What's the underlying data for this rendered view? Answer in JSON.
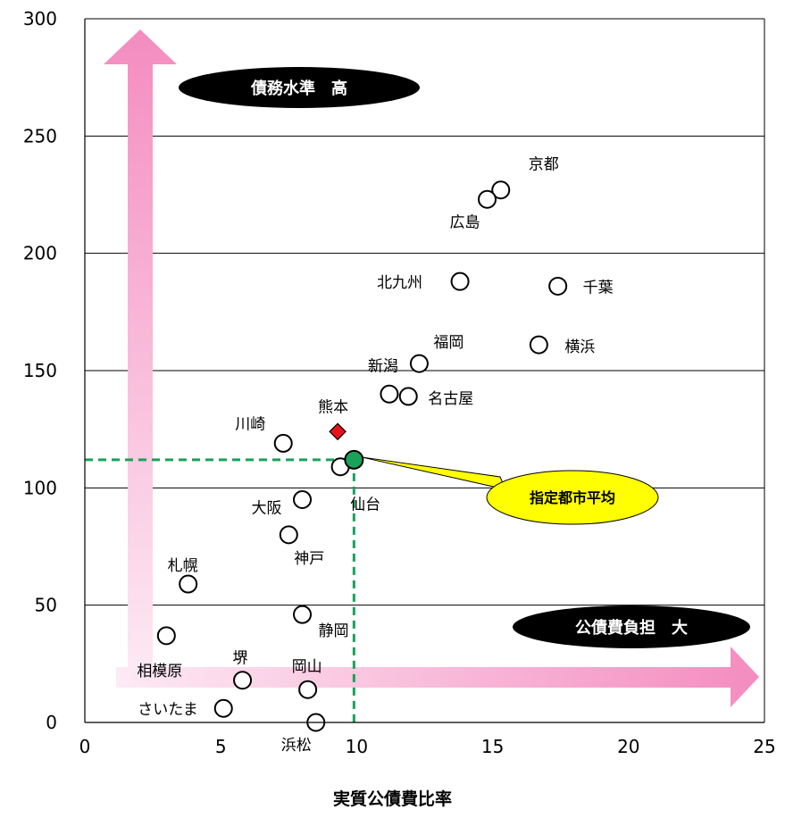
{
  "chart_data": {
    "type": "scatter",
    "xlabel": "実質公債費比率",
    "ylabel": "",
    "xlim": [
      0,
      25
    ],
    "ylim": [
      0,
      300
    ],
    "xticks": [
      "0",
      "5",
      "10",
      "15",
      "20",
      "25"
    ],
    "yticks": [
      "0",
      "50",
      "100",
      "150",
      "200",
      "250",
      "300"
    ],
    "grid": "horizontal",
    "points": [
      {
        "label": "京都",
        "x": 15.3,
        "y": 227
      },
      {
        "label": "広島",
        "x": 14.8,
        "y": 223
      },
      {
        "label": "北九州",
        "x": 13.8,
        "y": 188
      },
      {
        "label": "千葉",
        "x": 17.4,
        "y": 186
      },
      {
        "label": "横浜",
        "x": 16.7,
        "y": 161
      },
      {
        "label": "福岡",
        "x": 12.3,
        "y": 153
      },
      {
        "label": "新潟",
        "x": 11.2,
        "y": 140
      },
      {
        "label": "名古屋",
        "x": 11.9,
        "y": 139
      },
      {
        "label": "川崎",
        "x": 7.3,
        "y": 119
      },
      {
        "label": "仙台",
        "x": 9.4,
        "y": 109
      },
      {
        "label": "大阪",
        "x": 8.0,
        "y": 95
      },
      {
        "label": "神戸",
        "x": 7.5,
        "y": 80
      },
      {
        "label": "札幌",
        "x": 3.8,
        "y": 59
      },
      {
        "label": "静岡",
        "x": 8.0,
        "y": 46
      },
      {
        "label": "相模原",
        "x": 3.0,
        "y": 37
      },
      {
        "label": "堺",
        "x": 5.8,
        "y": 18
      },
      {
        "label": "岡山",
        "x": 8.2,
        "y": 14
      },
      {
        "label": "さいたま",
        "x": 5.1,
        "y": 6
      },
      {
        "label": "浜松",
        "x": 8.5,
        "y": 0
      }
    ],
    "highlight": {
      "label": "熊本",
      "x": 9.3,
      "y": 124,
      "color": "#e8141b",
      "marker": "diamond"
    },
    "average": {
      "label": "指定都市平均",
      "x": 9.9,
      "y": 112,
      "color": "#19a25a",
      "callout_color": "#ffff00"
    },
    "annotations": [
      {
        "text": "債務水準　高",
        "direction": "up"
      },
      {
        "text": "公債費負担　大",
        "direction": "right"
      }
    ],
    "arrow_color": "#f48cc0"
  }
}
